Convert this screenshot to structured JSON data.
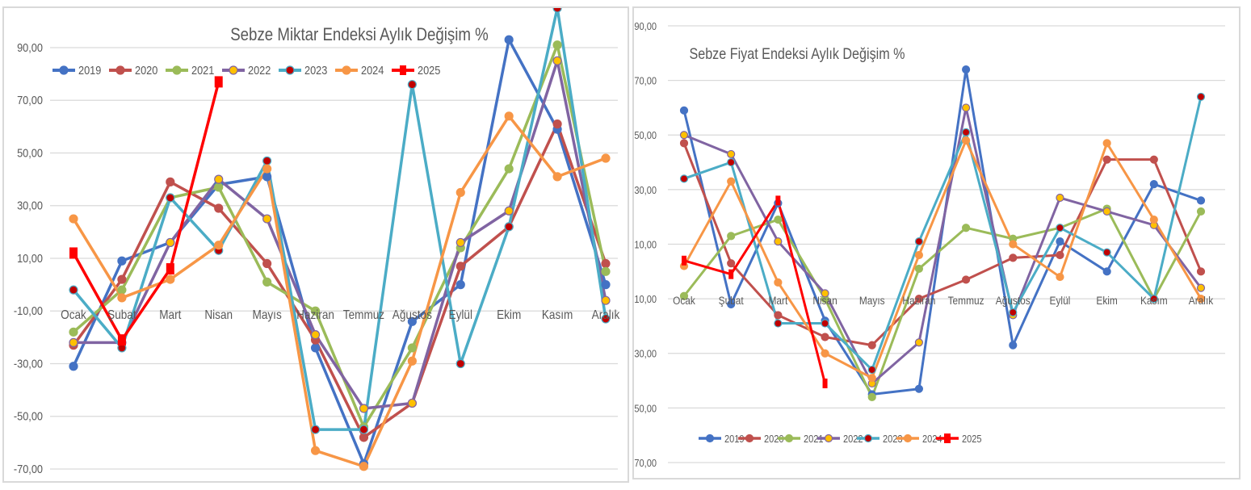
{
  "charts": [
    {
      "id": "left",
      "title": "Sebze Miktar Endeksi Aylık Değişim %",
      "ylim": [
        -70,
        90
      ],
      "ytick_labels": [
        "90,00",
        "70,00",
        "50,00",
        "30,00",
        "10,00",
        "-10,00",
        "-30,00",
        "-50,00",
        "-70,00"
      ],
      "legend_position": "top"
    },
    {
      "id": "right",
      "title": "Sebze Fiyat Endeksi Aylık Değişim %",
      "ylim": [
        -70,
        90
      ],
      "ytick_labels": [
        "90,00",
        "70,00",
        "50,00",
        "30,00",
        "10,00",
        "-10,00",
        "-30,00",
        "-50,00",
        "-70,00"
      ],
      "legend_position": "bottom"
    }
  ],
  "months": [
    "Ocak",
    "Şubat",
    "Mart",
    "Nisan",
    "Mayıs",
    "Haziran",
    "Temmuz",
    "Ağustos",
    "Eylül",
    "Ekim",
    "Kasım",
    "Aralık"
  ],
  "chart_data": [
    {
      "type": "line",
      "title": "Sebze Miktar Endeksi Aylık Değişim %",
      "categories": [
        "Ocak",
        "Şubat",
        "Mart",
        "Nisan",
        "Mayıs",
        "Haziran",
        "Temmuz",
        "Ağustos",
        "Eylül",
        "Ekim",
        "Kasım",
        "Aralık"
      ],
      "ylim": [
        -70,
        95
      ],
      "series": [
        {
          "name": "2019",
          "color": "#4472c4",
          "marker": "#4472c4",
          "values": [
            -31,
            9,
            16,
            38,
            41,
            -24,
            -68,
            -14,
            0,
            93,
            59,
            0
          ]
        },
        {
          "name": "2020",
          "color": "#c0504d",
          "marker": "#c0504d",
          "values": [
            -23,
            2,
            39,
            29,
            8,
            -21,
            -58,
            -45,
            7,
            22,
            61,
            8
          ]
        },
        {
          "name": "2021",
          "color": "#9bbb59",
          "marker": "#9bbb59",
          "values": [
            -18,
            -2,
            33,
            37,
            1,
            -10,
            -54,
            -24,
            14,
            44,
            91,
            5
          ]
        },
        {
          "name": "2022",
          "color": "#8064a2",
          "marker": "#ffc000",
          "values": [
            -22,
            -22,
            16,
            40,
            25,
            -19,
            -47,
            -45,
            16,
            28,
            85,
            -6
          ]
        },
        {
          "name": "2023",
          "color": "#4bacc6",
          "marker": "#c00000",
          "values": [
            -2,
            -24,
            33,
            13,
            47,
            -55,
            -55,
            76,
            -30,
            22,
            105,
            -13
          ]
        },
        {
          "name": "2024",
          "color": "#f79646",
          "marker": "#f79646",
          "values": [
            25,
            -5,
            2,
            15,
            44,
            -63,
            -69,
            -29,
            35,
            64,
            41,
            48
          ]
        },
        {
          "name": "2025",
          "color": "#ff0000",
          "marker": "#ff0000",
          "square": true,
          "values": [
            12,
            -21,
            6,
            77,
            null,
            null,
            null,
            null,
            null,
            null,
            null,
            null
          ]
        }
      ]
    },
    {
      "type": "line",
      "title": "Sebze Fiyat Endeksi Aylık Değişim %",
      "categories": [
        "Ocak",
        "Şubat",
        "Mart",
        "Nisan",
        "Mayıs",
        "Haziran",
        "Temmuz",
        "Ağustos",
        "Eylül",
        "Ekim",
        "Kasım",
        "Aralık"
      ],
      "ylim": [
        -70,
        90
      ],
      "series": [
        {
          "name": "2019",
          "color": "#4472c4",
          "marker": "#4472c4",
          "values": [
            59,
            -12,
            25,
            -18,
            -45,
            -43,
            74,
            -27,
            11,
            0,
            32,
            26
          ]
        },
        {
          "name": "2020",
          "color": "#c0504d",
          "marker": "#c0504d",
          "values": [
            47,
            3,
            -16,
            -24,
            -27,
            -10,
            -3,
            5,
            6,
            41,
            41,
            0
          ]
        },
        {
          "name": "2021",
          "color": "#9bbb59",
          "marker": "#9bbb59",
          "values": [
            -9,
            13,
            19,
            -10,
            -46,
            1,
            16,
            12,
            16,
            23,
            -10,
            22
          ]
        },
        {
          "name": "2022",
          "color": "#8064a2",
          "marker": "#ffc000",
          "values": [
            50,
            43,
            11,
            -8,
            -41,
            -26,
            60,
            -16,
            27,
            22,
            17,
            -6
          ]
        },
        {
          "name": "2023",
          "color": "#4bacc6",
          "marker": "#c00000",
          "values": [
            34,
            40,
            -19,
            -19,
            -36,
            11,
            51,
            -15,
            16,
            7,
            -10,
            64
          ]
        },
        {
          "name": "2024",
          "color": "#f79646",
          "marker": "#f79646",
          "values": [
            2,
            33,
            -4,
            -30,
            -39,
            6,
            48,
            10,
            -2,
            47,
            19,
            -10
          ]
        },
        {
          "name": "2025",
          "color": "#ff0000",
          "marker": "#ff0000",
          "square": true,
          "values": [
            4,
            -1,
            26,
            -41,
            null,
            null,
            null,
            null,
            null,
            null,
            null,
            null
          ]
        }
      ]
    }
  ]
}
